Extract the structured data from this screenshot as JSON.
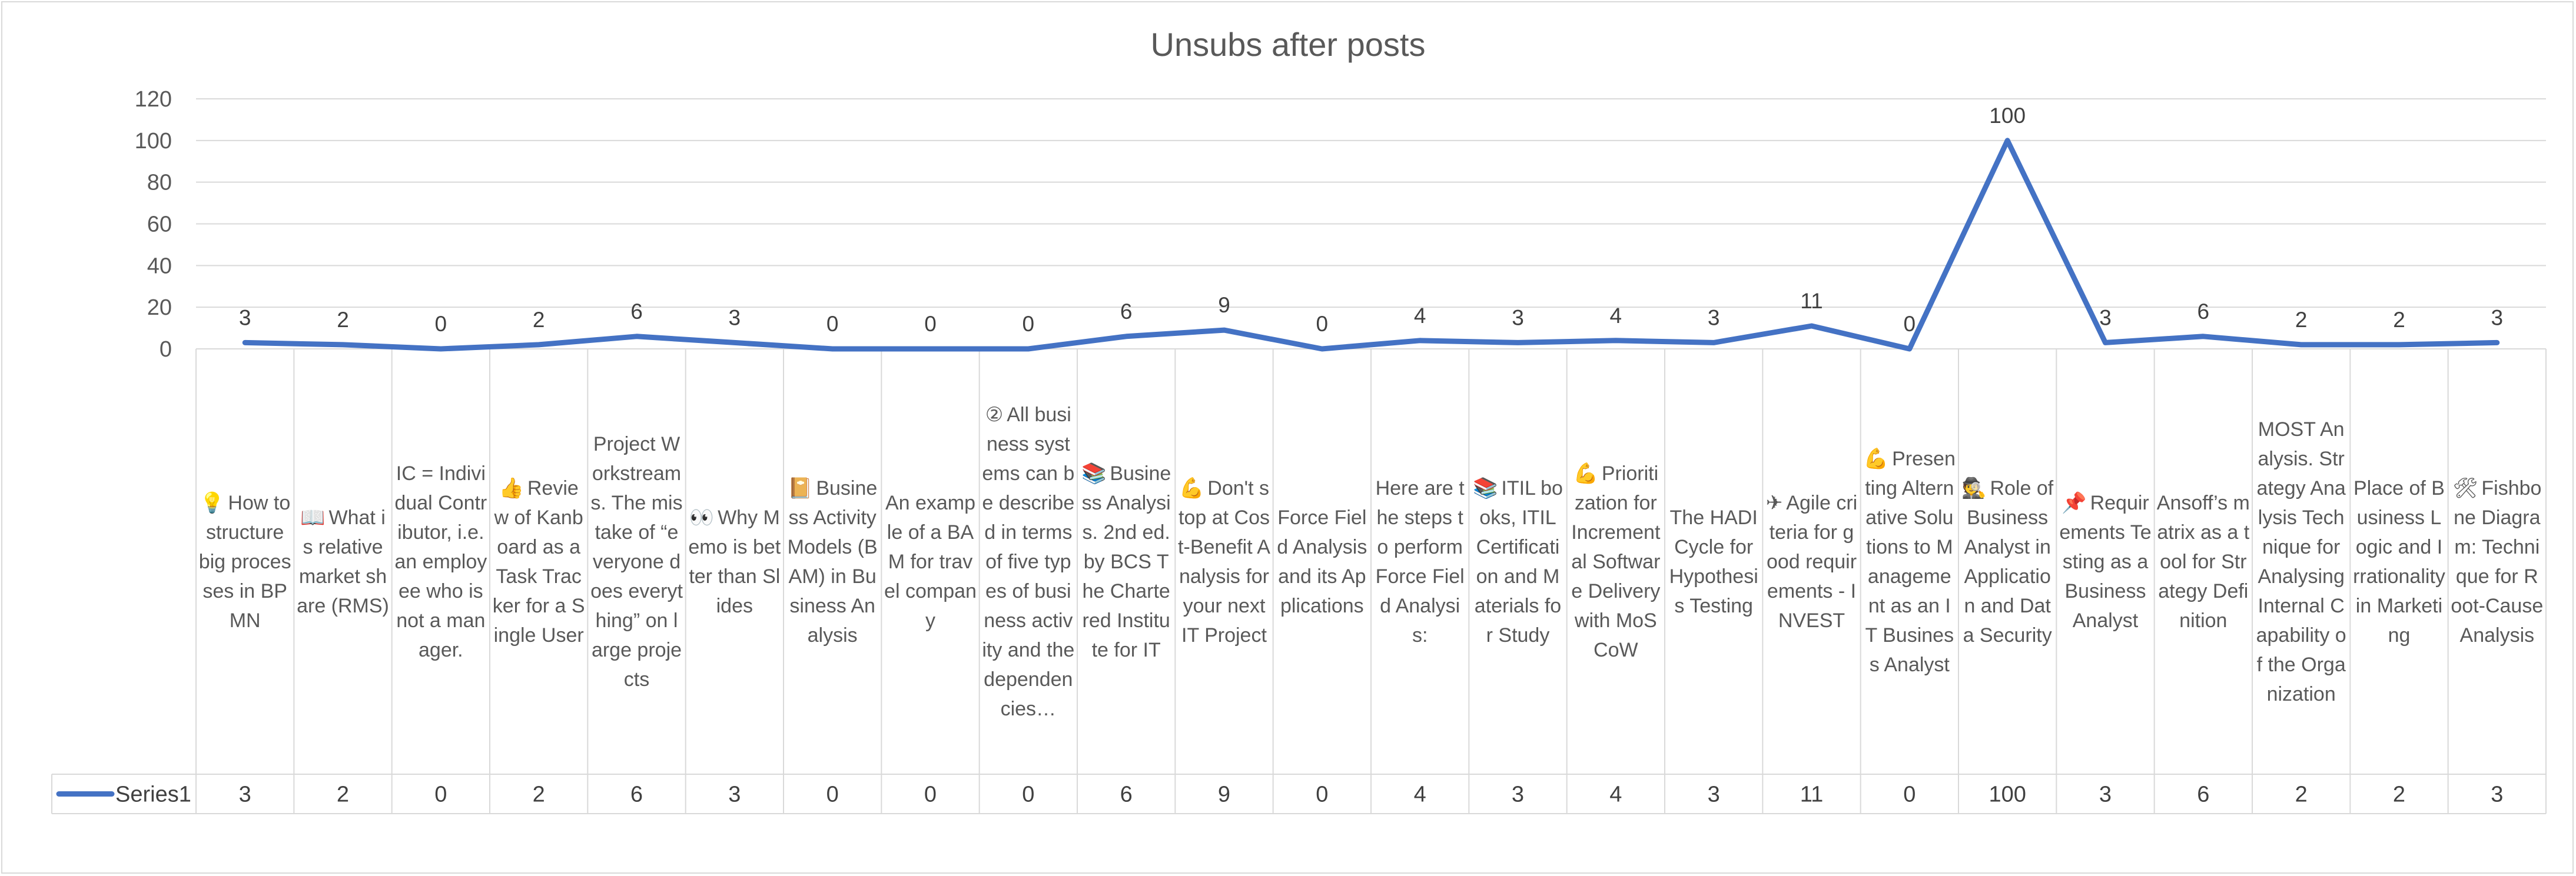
{
  "chart_data": {
    "type": "line",
    "title": "Unsubs after posts",
    "ylim": [
      0,
      120
    ],
    "yticks": [
      0,
      20,
      40,
      60,
      80,
      100,
      120
    ],
    "grid": true,
    "legend": "data-table",
    "line_color": "#4472c4",
    "categories": [
      "How to structure big processes in BPMN",
      "What is relative market share (RMS)",
      "IC = Individual Contributor, i.e. an employee who is not a manager.",
      "Review of Kanboard as a Task Tracker for a Single User",
      "Project Workstreams. The mistake of “everyone does everything” on large projects",
      "Why Memo is better than Slides",
      "Business Activity Models (BAM) in Business Analysis",
      "An example of a BAM for travel company",
      "All business systems can be described in terms of five types of business activity and the dependencies…",
      "Business Analysis. 2nd ed. by BCS The Chartered Institute for IT",
      "Don't stop at Cost-Benefit Analysis for your next IT Project",
      "Force Field Analysis and its Applications",
      "Here are the steps to perform Force Field Analysis:",
      "ITIL books, ITIL Certification and Materials for Study",
      "Prioritization for Incremental Software Delivery with MoSCoW",
      "The HADI Cycle for Hypothesis Testing",
      "Agile criteria for good requirements - INVEST",
      "Presenting Alternative Solutions to Management as an IT Business Analyst",
      "Role of Business Analyst in Application and Data Security",
      "Requirements Testing as a Business Analyst",
      "Ansoff’s matrix as a tool for Strategy Definition",
      "MOST Analysis. Strategy Analysis Technique for Analysing Internal Capability of the Organization",
      "Place of Business Logic and Irrationality in Marketing",
      "Fishbone Diagram: Technique for Root-Cause Analysis"
    ],
    "category_icons": [
      "lightbulb-icon",
      "open-book-icon",
      "",
      "thumbs-up-icon",
      "",
      "eyes-icon",
      "book-icon",
      "",
      "keycap-2-icon",
      "books-stack-icon",
      "flexed-bicep-icon",
      "",
      "",
      "books-stack-icon",
      "flexed-bicep-icon",
      "",
      "airplane-icon",
      "flexed-bicep-icon",
      "detective-icon",
      "pushpin-icon",
      "",
      "",
      "",
      "tools-icon"
    ],
    "series": [
      {
        "name": "Series1",
        "values": [
          3,
          2,
          0,
          2,
          6,
          3,
          0,
          0,
          0,
          6,
          9,
          0,
          4,
          3,
          4,
          3,
          11,
          0,
          100,
          3,
          6,
          2,
          2,
          3
        ]
      }
    ]
  }
}
